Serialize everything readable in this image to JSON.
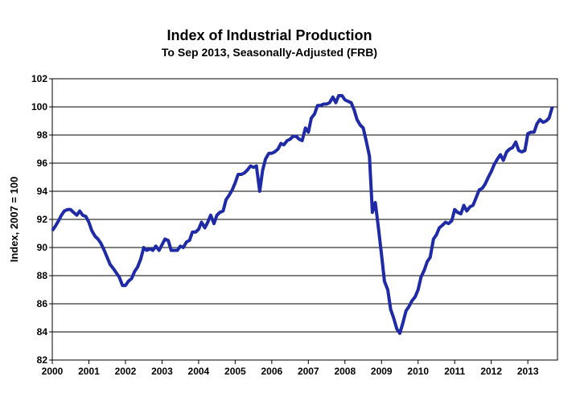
{
  "chart_data": {
    "type": "line",
    "title": "Index of Industrial Production",
    "subtitle": "To Sep 2013, Seasonally-Adjusted (FRB)",
    "y_label": "Index, 2007 = 100",
    "xlim": [
      2000,
      2013.81
    ],
    "xticks": [
      2000,
      2001,
      2002,
      2003,
      2004,
      2005,
      2006,
      2007,
      2008,
      2009,
      2010,
      2011,
      2012,
      2013
    ],
    "ylim": [
      82,
      102
    ],
    "yticks": [
      82,
      84,
      86,
      88,
      90,
      92,
      94,
      96,
      98,
      100,
      102
    ],
    "grid": true,
    "x": [
      2000.0,
      2000.08,
      2000.17,
      2000.25,
      2000.33,
      2000.42,
      2000.5,
      2000.58,
      2000.67,
      2000.75,
      2000.83,
      2000.92,
      2001.0,
      2001.08,
      2001.17,
      2001.25,
      2001.33,
      2001.42,
      2001.5,
      2001.58,
      2001.67,
      2001.75,
      2001.83,
      2001.92,
      2002.0,
      2002.08,
      2002.17,
      2002.25,
      2002.33,
      2002.42,
      2002.5,
      2002.58,
      2002.67,
      2002.75,
      2002.83,
      2002.92,
      2003.0,
      2003.08,
      2003.17,
      2003.25,
      2003.33,
      2003.42,
      2003.5,
      2003.58,
      2003.67,
      2003.75,
      2003.83,
      2003.92,
      2004.0,
      2004.08,
      2004.17,
      2004.25,
      2004.33,
      2004.42,
      2004.5,
      2004.58,
      2004.67,
      2004.75,
      2004.83,
      2004.92,
      2005.0,
      2005.08,
      2005.17,
      2005.25,
      2005.33,
      2005.42,
      2005.5,
      2005.58,
      2005.67,
      2005.75,
      2005.83,
      2005.92,
      2006.0,
      2006.08,
      2006.17,
      2006.25,
      2006.33,
      2006.42,
      2006.5,
      2006.58,
      2006.67,
      2006.75,
      2006.83,
      2006.92,
      2007.0,
      2007.08,
      2007.17,
      2007.25,
      2007.33,
      2007.42,
      2007.5,
      2007.58,
      2007.67,
      2007.75,
      2007.83,
      2007.92,
      2008.0,
      2008.08,
      2008.17,
      2008.25,
      2008.33,
      2008.42,
      2008.5,
      2008.58,
      2008.67,
      2008.75,
      2008.83,
      2008.92,
      2009.0,
      2009.08,
      2009.17,
      2009.25,
      2009.33,
      2009.42,
      2009.5,
      2009.58,
      2009.67,
      2009.75,
      2009.83,
      2009.92,
      2010.0,
      2010.08,
      2010.17,
      2010.25,
      2010.33,
      2010.42,
      2010.5,
      2010.58,
      2010.67,
      2010.75,
      2010.83,
      2010.92,
      2011.0,
      2011.08,
      2011.17,
      2011.25,
      2011.33,
      2011.42,
      2011.5,
      2011.58,
      2011.67,
      2011.75,
      2011.83,
      2011.92,
      2012.0,
      2012.08,
      2012.17,
      2012.25,
      2012.33,
      2012.42,
      2012.5,
      2012.58,
      2012.67,
      2012.75,
      2012.83,
      2012.92,
      2013.0,
      2013.08,
      2013.17,
      2013.25,
      2013.33,
      2013.42,
      2013.5,
      2013.58,
      2013.67
    ],
    "series": [
      {
        "color": "#1f2aa6",
        "values": [
          91.2,
          91.5,
          91.9,
          92.3,
          92.6,
          92.7,
          92.7,
          92.5,
          92.3,
          92.6,
          92.3,
          92.2,
          91.8,
          91.2,
          90.8,
          90.6,
          90.3,
          89.8,
          89.3,
          88.8,
          88.5,
          88.2,
          87.9,
          87.3,
          87.3,
          87.6,
          87.8,
          88.3,
          88.6,
          89.2,
          90.0,
          89.8,
          89.9,
          89.8,
          90.1,
          89.8,
          90.2,
          90.6,
          90.5,
          89.8,
          89.8,
          89.8,
          90.1,
          90.0,
          90.4,
          90.5,
          91.1,
          91.1,
          91.3,
          91.8,
          91.4,
          91.8,
          92.3,
          91.7,
          92.3,
          92.5,
          92.6,
          93.4,
          93.7,
          94.1,
          94.6,
          95.2,
          95.2,
          95.3,
          95.5,
          95.8,
          95.7,
          95.8,
          94.0,
          95.5,
          96.3,
          96.7,
          96.7,
          96.8,
          97.0,
          97.4,
          97.3,
          97.6,
          97.7,
          97.9,
          97.9,
          97.7,
          97.6,
          98.5,
          98.2,
          99.2,
          99.5,
          100.1,
          100.1,
          100.2,
          100.2,
          100.3,
          100.7,
          100.3,
          100.8,
          100.8,
          100.5,
          100.4,
          100.3,
          99.8,
          99.1,
          98.7,
          98.5,
          97.6,
          96.5,
          92.5,
          93.2,
          91.3,
          89.5,
          87.6,
          87.0,
          85.6,
          85.0,
          84.2,
          83.9,
          84.6,
          85.5,
          85.8,
          86.2,
          86.5,
          87.0,
          87.9,
          88.4,
          89.0,
          89.3,
          90.6,
          90.9,
          91.4,
          91.6,
          91.8,
          91.7,
          91.9,
          92.7,
          92.5,
          92.4,
          93.0,
          92.6,
          92.9,
          93.0,
          93.5,
          94.1,
          94.2,
          94.5,
          95.0,
          95.4,
          95.9,
          96.3,
          96.6,
          96.2,
          96.8,
          97.0,
          97.1,
          97.5,
          96.9,
          96.8,
          96.9,
          98.1,
          98.2,
          98.2,
          98.8,
          99.1,
          98.9,
          99.0,
          99.2,
          100.0
        ]
      }
    ]
  }
}
